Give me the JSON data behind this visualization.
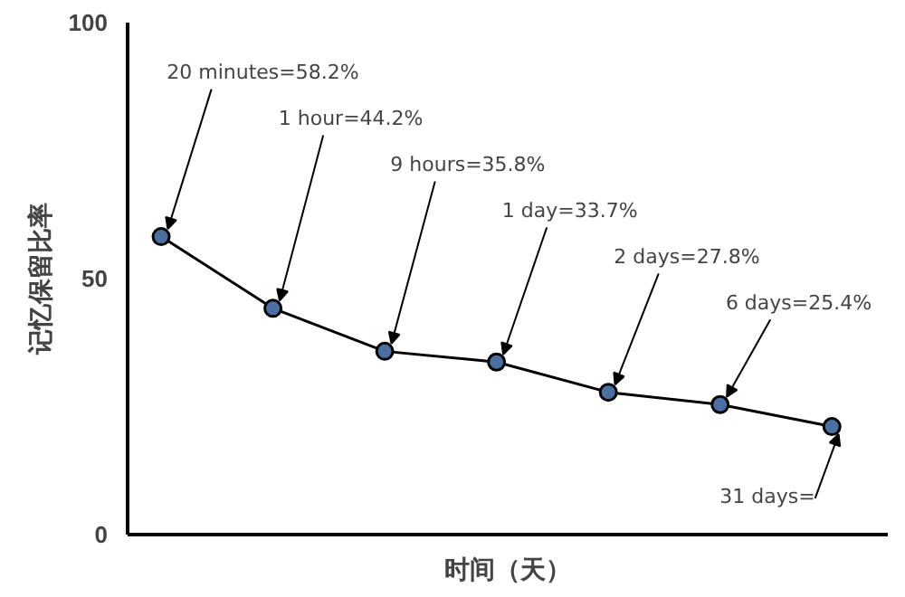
{
  "chart_data": {
    "type": "line",
    "xlabel": "时间（天）",
    "ylabel": "记忆保留比率",
    "categories": [
      null,
      null,
      null,
      null,
      null,
      null,
      null
    ],
    "values": [
      58.2,
      44.2,
      35.8,
      33.7,
      27.8,
      25.4,
      21.1
    ],
    "color": "#000000",
    "marker": "circle",
    "line_style": "solid",
    "ylim": [
      0,
      100
    ],
    "yticks": [
      0,
      50,
      100
    ],
    "grid": false,
    "annotations": [
      "20 minutes=58.2%",
      "1 hour=44.2%",
      "9 hours=35.8%",
      "1 day=33.7%",
      "2 days=27.8%",
      "6 days=25.4%",
      "31 days="
    ]
  }
}
